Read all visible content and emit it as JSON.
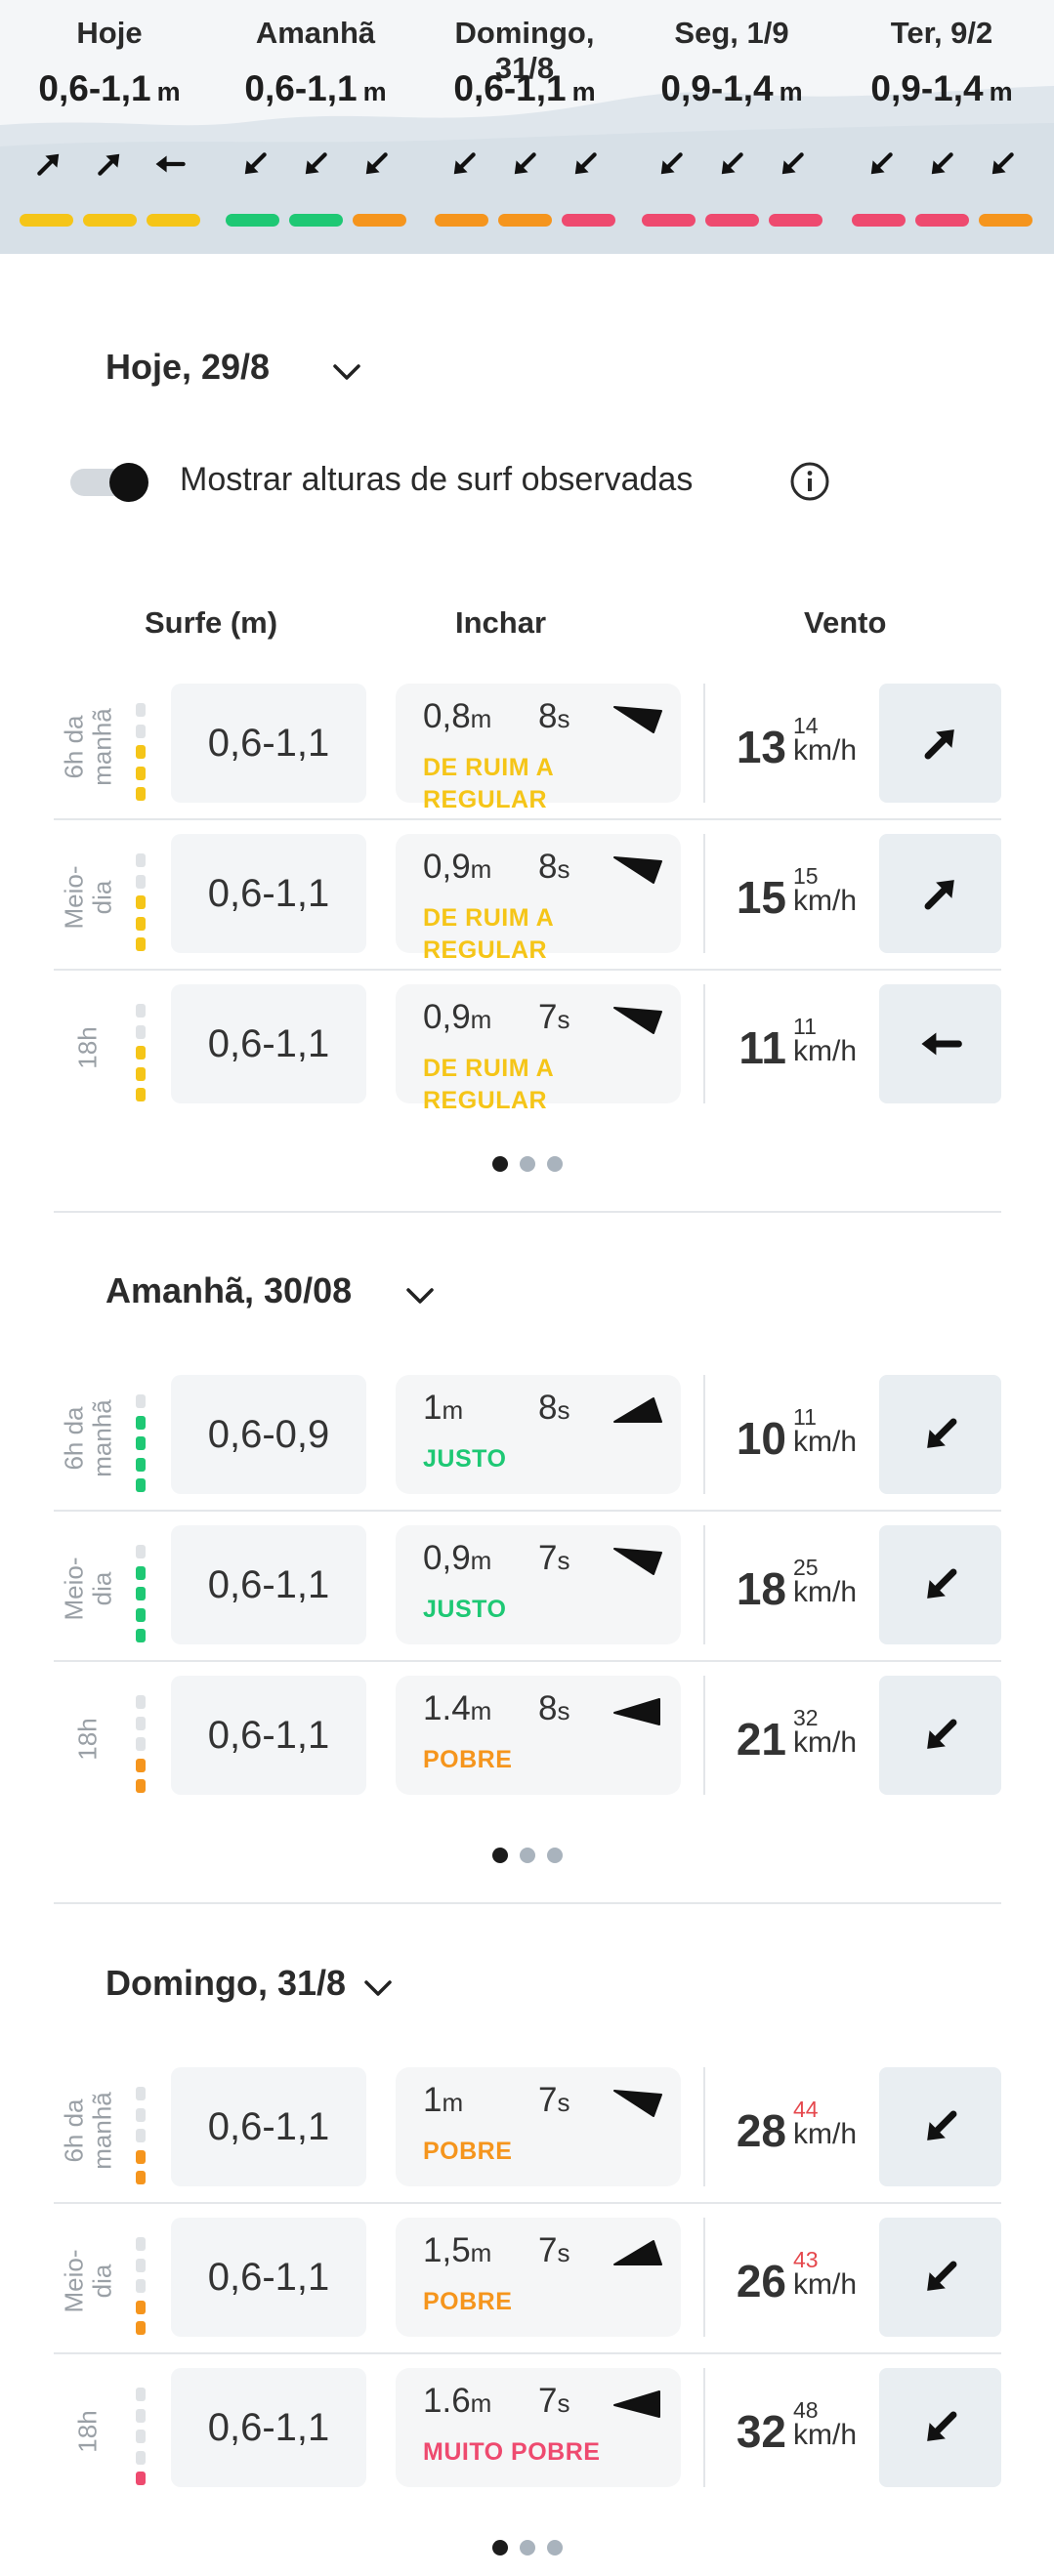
{
  "colors": {
    "yellow": "#f5c518",
    "green": "#1ec874",
    "orange": "#f5951d",
    "red": "#ee4a6f",
    "gust_red": "#e5484d"
  },
  "top_days": [
    {
      "name": "Hoje",
      "height": "0,6-1,1",
      "unit": "m",
      "wind_arrows": [
        "arrow-up-right-icon",
        "arrow-up-right-icon",
        "arrow-left-icon"
      ],
      "ratings": [
        "yellow",
        "yellow",
        "yellow"
      ]
    },
    {
      "name": "Amanhã",
      "height": "0,6-1,1",
      "unit": "m",
      "wind_arrows": [
        "arrow-down-left-icon",
        "arrow-down-left-icon",
        "arrow-down-left-icon"
      ],
      "ratings": [
        "green",
        "green",
        "orange"
      ]
    },
    {
      "name": "Domingo, 31/8",
      "height": "0,6-1,1",
      "unit": "m",
      "wind_arrows": [
        "arrow-down-left-icon",
        "arrow-down-left-icon",
        "arrow-down-left-icon"
      ],
      "ratings": [
        "orange",
        "orange",
        "red"
      ]
    },
    {
      "name": "Seg, 1/9",
      "height": "0,9-1,4",
      "unit": "m",
      "wind_arrows": [
        "arrow-down-left-icon",
        "arrow-down-left-icon",
        "arrow-down-left-icon"
      ],
      "ratings": [
        "red",
        "red",
        "red"
      ]
    },
    {
      "name": "Ter, 9/2",
      "height": "0,9-1,4",
      "unit": "m",
      "wind_arrows": [
        "arrow-down-left-icon",
        "arrow-down-left-icon",
        "arrow-down-left-icon"
      ],
      "ratings": [
        "red",
        "red",
        "orange"
      ]
    }
  ],
  "toggle": {
    "label": "Mostrar alturas de surf observadas",
    "on": true
  },
  "columns": {
    "surf": "Surfe (m)",
    "swell": "Inchar",
    "wind": "Vento"
  },
  "sections": [
    {
      "title": "Hoje, 29/8",
      "rows": [
        {
          "time": "6h da manhã",
          "level": {
            "color": "yellow",
            "filled": 3
          },
          "surf": "0,6-1,1",
          "swell_h": "0,8",
          "swell_h_unit": "m",
          "swell_p": "8",
          "swell_p_unit": "s",
          "swell_dir": "down-right",
          "rating": "DE RUIM A REGULAR",
          "rating_color": "yellow",
          "wind": "13",
          "gust": "14",
          "gust_red": false,
          "wind_unit": "km/h",
          "wind_dir": "arrow-up-right-icon"
        },
        {
          "time": "Meio-dia",
          "level": {
            "color": "yellow",
            "filled": 3
          },
          "surf": "0,6-1,1",
          "swell_h": "0,9",
          "swell_h_unit": "m",
          "swell_p": "8",
          "swell_p_unit": "s",
          "swell_dir": "down-right",
          "rating": "DE RUIM A REGULAR",
          "rating_color": "yellow",
          "wind": "15",
          "gust": "15",
          "gust_red": false,
          "wind_unit": "km/h",
          "wind_dir": "arrow-up-right-icon"
        },
        {
          "time": "18h",
          "level": {
            "color": "yellow",
            "filled": 3
          },
          "surf": "0,6-1,1",
          "swell_h": "0,9",
          "swell_h_unit": "m",
          "swell_p": "7",
          "swell_p_unit": "s",
          "swell_dir": "down-right",
          "rating": "DE RUIM A REGULAR",
          "rating_color": "yellow",
          "wind": "11",
          "gust": "11",
          "gust_red": false,
          "wind_unit": "km/h",
          "wind_dir": "arrow-left-icon"
        }
      ]
    },
    {
      "title": "Amanhã, 30/08",
      "rows": [
        {
          "time": "6h da manhã",
          "level": {
            "color": "green",
            "filled": 4
          },
          "surf": "0,6-0,9",
          "swell_h": "1",
          "swell_h_unit": "m",
          "swell_p": "8",
          "swell_p_unit": "s",
          "swell_dir": "up-right",
          "rating": "JUSTO",
          "rating_color": "green",
          "wind": "10",
          "gust": "11",
          "gust_red": false,
          "wind_unit": "km/h",
          "wind_dir": "arrow-down-left-icon"
        },
        {
          "time": "Meio-dia",
          "level": {
            "color": "green",
            "filled": 4
          },
          "surf": "0,6-1,1",
          "swell_h": "0,9",
          "swell_h_unit": "m",
          "swell_p": "7",
          "swell_p_unit": "s",
          "swell_dir": "down-right",
          "rating": "JUSTO",
          "rating_color": "green",
          "wind": "18",
          "gust": "25",
          "gust_red": false,
          "wind_unit": "km/h",
          "wind_dir": "arrow-down-left-icon"
        },
        {
          "time": "18h",
          "level": {
            "color": "orange",
            "filled": 2
          },
          "surf": "0,6-1,1",
          "swell_h": "1.4",
          "swell_h_unit": "m",
          "swell_p": "8",
          "swell_p_unit": "s",
          "swell_dir": "left",
          "rating": "POBRE",
          "rating_color": "orange",
          "wind": "21",
          "gust": "32",
          "gust_red": false,
          "wind_unit": "km/h",
          "wind_dir": "arrow-down-left-icon"
        }
      ]
    },
    {
      "title": "Domingo, 31/8",
      "rows": [
        {
          "time": "6h da manhã",
          "level": {
            "color": "orange",
            "filled": 2
          },
          "surf": "0,6-1,1",
          "swell_h": "1",
          "swell_h_unit": "m",
          "swell_p": "7",
          "swell_p_unit": "s",
          "swell_dir": "down-right",
          "rating": "POBRE",
          "rating_color": "orange",
          "wind": "28",
          "gust": "44",
          "gust_red": true,
          "wind_unit": "km/h",
          "wind_dir": "arrow-down-left-icon"
        },
        {
          "time": "Meio-dia",
          "level": {
            "color": "orange",
            "filled": 2
          },
          "surf": "0,6-1,1",
          "swell_h": "1,5",
          "swell_h_unit": "m",
          "swell_p": "7",
          "swell_p_unit": "s",
          "swell_dir": "up-right",
          "rating": "POBRE",
          "rating_color": "orange",
          "wind": "26",
          "gust": "43",
          "gust_red": true,
          "wind_unit": "km/h",
          "wind_dir": "arrow-down-left-icon"
        },
        {
          "time": "18h",
          "level": {
            "color": "red",
            "filled": 1
          },
          "surf": "0,6-1,1",
          "swell_h": "1.6",
          "swell_h_unit": "m",
          "swell_p": "7",
          "swell_p_unit": "s",
          "swell_dir": "left",
          "rating": "MUITO POBRE",
          "rating_color": "red",
          "wind": "32",
          "gust": "48",
          "gust_red": false,
          "wind_unit": "km/h",
          "wind_dir": "arrow-down-left-icon"
        }
      ]
    }
  ]
}
